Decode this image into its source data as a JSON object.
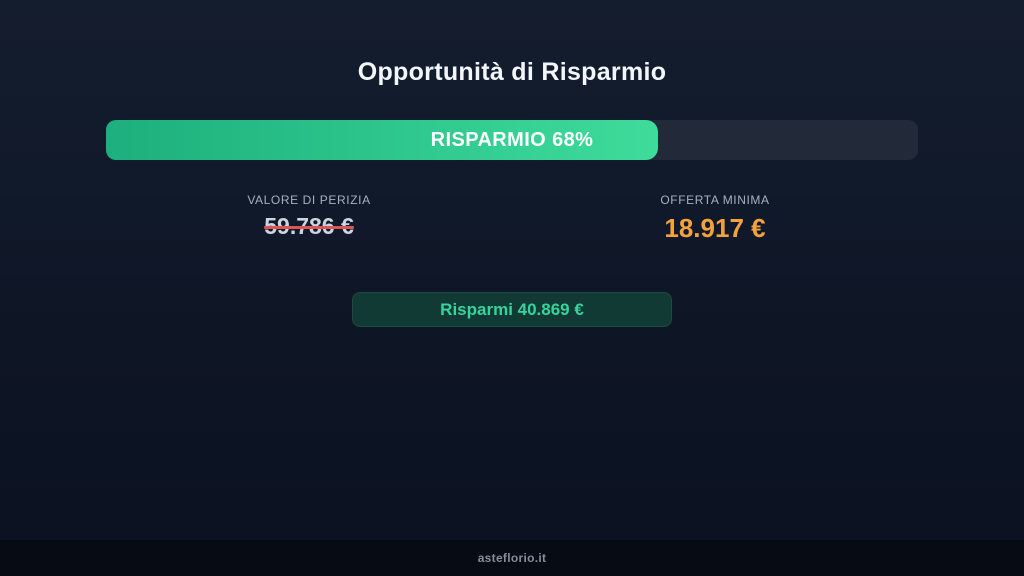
{
  "header": {
    "title": "Opportunità di Risparmio"
  },
  "progress": {
    "label": "RISPARMIO 68%",
    "percent": 68
  },
  "stats": {
    "appraisal": {
      "label": "VALORE DI PERIZIA",
      "value": "59.786 €"
    },
    "minimum_offer": {
      "label": "OFFERTA MINIMA",
      "value": "18.917 €"
    }
  },
  "savings_badge": {
    "label": "Risparmi 40.869 €"
  },
  "footer": {
    "site": "asteflorio.it"
  },
  "colors": {
    "green_start": "#1daf7d",
    "green_end": "#3edc9b",
    "track": "#222a3a",
    "orange": "#f3a33d",
    "strike_red": "#dd5454",
    "badge_bg": "#123a34",
    "badge_text": "#36d49c"
  }
}
